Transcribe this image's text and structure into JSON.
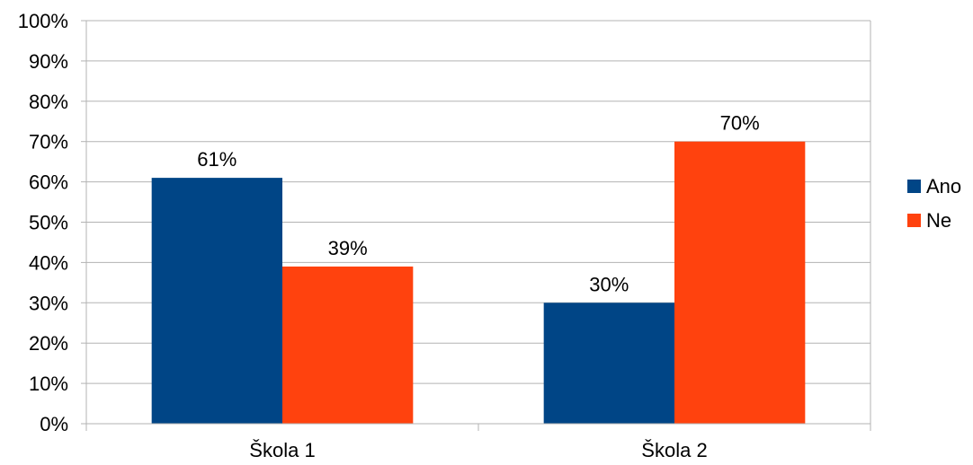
{
  "chart_data": {
    "type": "bar",
    "categories": [
      "Škola 1",
      "Škola 2"
    ],
    "series": [
      {
        "name": "Ano",
        "values": [
          61,
          30
        ],
        "labels": [
          "61%",
          "30%"
        ],
        "color": "#004586"
      },
      {
        "name": "Ne",
        "values": [
          39,
          70
        ],
        "labels": [
          "39%",
          "70%"
        ],
        "color": "#ff420e"
      }
    ],
    "ylim": [
      0,
      100
    ],
    "yticks": [
      "0%",
      "10%",
      "20%",
      "30%",
      "40%",
      "50%",
      "60%",
      "70%",
      "80%",
      "90%",
      "100%"
    ],
    "grid": true,
    "legend_position": "right",
    "colors": {
      "grid": "#b3b3b3",
      "axis": "#b3b3b3"
    }
  }
}
